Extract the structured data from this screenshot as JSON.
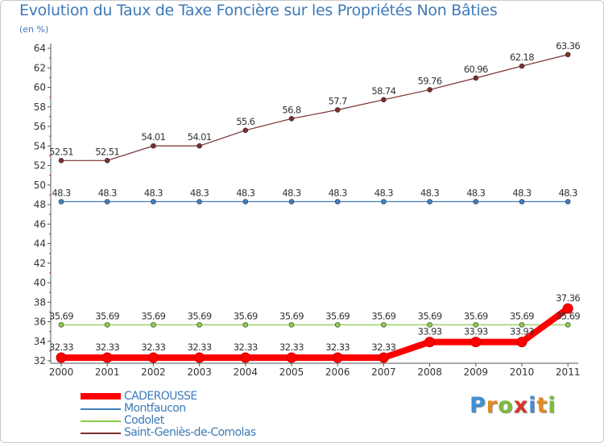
{
  "chart_data": {
    "type": "line",
    "title": "Evolution du Taux de Taxe Foncière sur les Propriétés Non Bâties",
    "ylabel": "(en %)",
    "xlabel": "",
    "ylim": [
      32,
      64
    ],
    "yticks": [
      "32",
      "34",
      "36",
      "38",
      "40",
      "42",
      "44",
      "46",
      "48",
      "50",
      "52",
      "54",
      "56",
      "58",
      "60",
      "62",
      "64"
    ],
    "categories": [
      "2000",
      "2001",
      "2002",
      "2003",
      "2004",
      "2005",
      "2006",
      "2007",
      "2008",
      "2009",
      "2010",
      "2011"
    ],
    "grid": false,
    "legend": "bottom-left",
    "series": [
      {
        "name": "CADEROUSSE",
        "color": "#ff0000",
        "values": [
          32.33,
          32.33,
          32.33,
          32.33,
          32.33,
          32.33,
          32.33,
          32.33,
          33.93,
          33.93,
          33.93,
          37.36
        ],
        "labels": [
          "32.33",
          "32.33",
          "32.33",
          "32.33",
          "32.33",
          "32.33",
          "32.33",
          "32.33",
          "33.93",
          "33.93",
          "33.93",
          "37.36"
        ]
      },
      {
        "name": "Montfaucon",
        "color": "#3f7fbf",
        "values": [
          48.3,
          48.3,
          48.3,
          48.3,
          48.3,
          48.3,
          48.3,
          48.3,
          48.3,
          48.3,
          48.3,
          48.3
        ],
        "labels": [
          "48.3",
          "48.3",
          "48.3",
          "48.3",
          "48.3",
          "48.3",
          "48.3",
          "48.3",
          "48.3",
          "48.3",
          "48.3",
          "48.3"
        ]
      },
      {
        "name": "Codolet",
        "color": "#8ccc4a",
        "values": [
          35.69,
          35.69,
          35.69,
          35.69,
          35.69,
          35.69,
          35.69,
          35.69,
          35.69,
          35.69,
          35.69,
          35.69
        ],
        "labels": [
          "35.69",
          "35.69",
          "35.69",
          "35.69",
          "35.69",
          "35.69",
          "35.69",
          "35.69",
          "35.69",
          "35.69",
          "35.69",
          "35.69"
        ]
      },
      {
        "name": "Saint-Geniès-de-Comolas",
        "color": "#7a2f2f",
        "values": [
          52.51,
          52.51,
          54.01,
          54.01,
          55.6,
          56.8,
          57.7,
          58.74,
          59.76,
          60.96,
          62.18,
          63.36
        ],
        "labels": [
          "52.51",
          "52.51",
          "54.01",
          "54.01",
          "55.6",
          "56.8",
          "57.7",
          "58.74",
          "59.76",
          "60.96",
          "62.18",
          "63.36"
        ]
      }
    ]
  },
  "logo": {
    "letters": [
      "P",
      "r",
      "o",
      "x",
      "i",
      "t",
      "i"
    ],
    "colors": [
      "#3f8fd6",
      "#e58a1e",
      "#7dbb3f",
      "#d9342b",
      "#3f8fd6",
      "#e58a1e",
      "#7dbb3f"
    ]
  }
}
